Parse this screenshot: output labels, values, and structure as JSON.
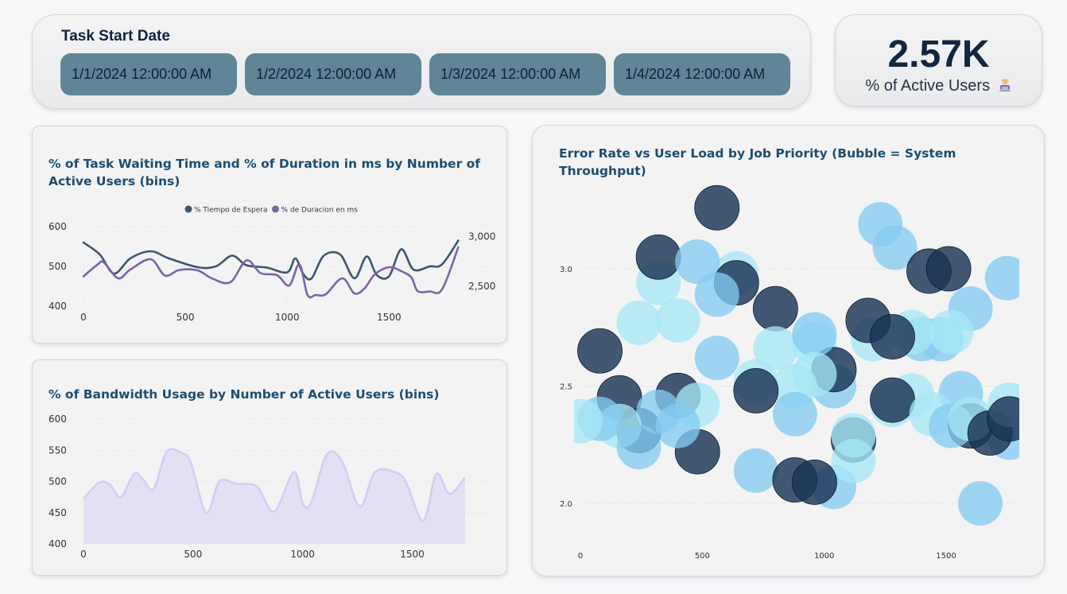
{
  "slicer": {
    "title": "Task Start Date",
    "options": [
      "1/1/2024 12:00:00 AM",
      "1/2/2024 12:00:00 AM",
      "1/3/2024 12:00:00 AM",
      "1/4/2024 12:00:00 AM"
    ]
  },
  "kpi": {
    "value": "2.57K",
    "label": "% of Active Users",
    "icon": "technologist-emoji-icon"
  },
  "colors": {
    "waiting": "#3e566e",
    "duration": "#7b64a6",
    "bandwidth_line": "#d5ccf6",
    "bandwidth_fill": "#e3ddf3",
    "bubble_dark": "#1b3556",
    "bubble_blue": "#84cbf1",
    "bubble_cyan": "#a6e7f6"
  },
  "chart_data": [
    {
      "type": "line",
      "title": "% of Task Waiting Time and % of Duration in ms by Number of Active Users (bins)",
      "xlim": [
        0,
        1850
      ],
      "x_ticks": [
        0,
        500,
        1000,
        1500
      ],
      "y_left": {
        "ticks": [
          400,
          500,
          600
        ],
        "lim": [
          400,
          600
        ]
      },
      "y_right": {
        "ticks": [
          2500,
          3000
        ],
        "tick_labels": [
          "2,500",
          "3,000"
        ],
        "lim": [
          2300,
          3100
        ]
      },
      "legend": {
        "placement": "top-center"
      },
      "series": [
        {
          "name": "% Tiempo de Espera",
          "axis": "left",
          "color": "#3e566e",
          "points": [
            [
              0,
              560
            ],
            [
              80,
              530
            ],
            [
              150,
              482
            ],
            [
              230,
              520
            ],
            [
              330,
              538
            ],
            [
              420,
              520
            ],
            [
              560,
              498
            ],
            [
              650,
              500
            ],
            [
              730,
              527
            ],
            [
              800,
              503
            ],
            [
              900,
              497
            ],
            [
              1000,
              485
            ],
            [
              1040,
              520
            ],
            [
              1080,
              480
            ],
            [
              1120,
              470
            ],
            [
              1180,
              527
            ],
            [
              1260,
              530
            ],
            [
              1330,
              470
            ],
            [
              1390,
              525
            ],
            [
              1440,
              478
            ],
            [
              1500,
              475
            ],
            [
              1560,
              543
            ],
            [
              1620,
              492
            ],
            [
              1700,
              500
            ],
            [
              1760,
              505
            ],
            [
              1840,
              565
            ]
          ]
        },
        {
          "name": "% de Duracion en ms",
          "axis": "left",
          "color": "#7b64a6",
          "points": [
            [
              0,
              475
            ],
            [
              70,
              505
            ],
            [
              100,
              510
            ],
            [
              170,
              470
            ],
            [
              230,
              492
            ],
            [
              330,
              518
            ],
            [
              400,
              477
            ],
            [
              470,
              491
            ],
            [
              560,
              490
            ],
            [
              630,
              470
            ],
            [
              720,
              460
            ],
            [
              800,
              515
            ],
            [
              870,
              483
            ],
            [
              950,
              478
            ],
            [
              1010,
              452
            ],
            [
              1060,
              505
            ],
            [
              1100,
              428
            ],
            [
              1140,
              428
            ],
            [
              1190,
              430
            ],
            [
              1270,
              470
            ],
            [
              1330,
              432
            ],
            [
              1380,
              445
            ],
            [
              1430,
              480
            ],
            [
              1500,
              498
            ],
            [
              1560,
              488
            ],
            [
              1610,
              472
            ],
            [
              1640,
              438
            ],
            [
              1700,
              437
            ],
            [
              1760,
              442
            ],
            [
              1840,
              548
            ]
          ]
        }
      ]
    },
    {
      "type": "area",
      "title": "% of Bandwidth Usage by Number of Active Users (bins)",
      "xlim": [
        0,
        1850
      ],
      "x_ticks": [
        0,
        500,
        1000,
        1500
      ],
      "ylim": [
        400,
        600
      ],
      "y_ticks": [
        400,
        450,
        500,
        550,
        600
      ],
      "grid": true,
      "series": [
        {
          "color": "#d5ccf6",
          "points": [
            [
              0,
              472
            ],
            [
              70,
              498
            ],
            [
              120,
              495
            ],
            [
              170,
              475
            ],
            [
              230,
              512
            ],
            [
              270,
              504
            ],
            [
              320,
              488
            ],
            [
              380,
              548
            ],
            [
              450,
              545
            ],
            [
              490,
              530
            ],
            [
              560,
              450
            ],
            [
              620,
              500
            ],
            [
              700,
              496
            ],
            [
              790,
              492
            ],
            [
              870,
              452
            ],
            [
              960,
              515
            ],
            [
              1000,
              465
            ],
            [
              1040,
              467
            ],
            [
              1110,
              543
            ],
            [
              1180,
              532
            ],
            [
              1260,
              460
            ],
            [
              1330,
              515
            ],
            [
              1420,
              515
            ],
            [
              1470,
              500
            ],
            [
              1550,
              437
            ],
            [
              1610,
              512
            ],
            [
              1670,
              480
            ],
            [
              1740,
              506
            ]
          ]
        }
      ]
    },
    {
      "type": "scatter",
      "title": "Error Rate vs User Load by Job Priority (Bubble = System Throughput)",
      "xlim": [
        0,
        1800
      ],
      "ylim": [
        1.8,
        3.4
      ],
      "x_ticks": [
        0,
        500,
        1000,
        1500
      ],
      "y_ticks": [
        2.0,
        2.5,
        3.0
      ],
      "y_tick_labels": [
        "2.0",
        "2.5",
        "3.0"
      ],
      "grid": true,
      "series": [
        {
          "color": "#1b3556",
          "points": [
            [
              560,
              3.26
            ],
            [
              320,
              3.05
            ],
            [
              640,
              2.94
            ],
            [
              800,
              2.83
            ],
            [
              80,
              2.65
            ],
            [
              160,
              2.45
            ],
            [
              400,
              2.46
            ],
            [
              240,
              2.31
            ],
            [
              480,
              2.22
            ],
            [
              1040,
              2.57
            ],
            [
              1180,
              2.78
            ],
            [
              1280,
              2.71
            ],
            [
              1430,
              2.99
            ],
            [
              1510,
              3.0
            ],
            [
              1280,
              2.44
            ],
            [
              1120,
              2.27
            ],
            [
              880,
              2.1
            ],
            [
              960,
              2.09
            ],
            [
              1600,
              2.33
            ],
            [
              1680,
              2.3
            ],
            [
              1760,
              2.36
            ],
            [
              720,
              2.48
            ]
          ]
        },
        {
          "color": "#84cbf1",
          "points": [
            [
              1230,
              3.19
            ],
            [
              1290,
              3.09
            ],
            [
              480,
              3.03
            ],
            [
              560,
              2.89
            ],
            [
              1750,
              2.96
            ],
            [
              1600,
              2.83
            ],
            [
              1400,
              2.7
            ],
            [
              1480,
              2.7
            ],
            [
              560,
              2.62
            ],
            [
              1040,
              2.5
            ],
            [
              1560,
              2.47
            ],
            [
              1040,
              2.07
            ],
            [
              720,
              2.14
            ],
            [
              880,
              2.38
            ],
            [
              320,
              2.39
            ],
            [
              80,
              2.36
            ],
            [
              240,
              2.24
            ],
            [
              1640,
              2.0
            ],
            [
              1760,
              2.28
            ],
            [
              1520,
              2.33
            ],
            [
              960,
              2.72
            ],
            [
              400,
              2.33
            ]
          ]
        },
        {
          "color": "#a6e7f6",
          "points": [
            [
              320,
              2.94
            ],
            [
              640,
              2.98
            ],
            [
              240,
              2.77
            ],
            [
              400,
              2.78
            ],
            [
              800,
              2.66
            ],
            [
              960,
              2.68
            ],
            [
              1200,
              2.7
            ],
            [
              1360,
              2.73
            ],
            [
              1520,
              2.73
            ],
            [
              1280,
              2.42
            ],
            [
              1360,
              2.46
            ],
            [
              720,
              2.52
            ],
            [
              880,
              2.5
            ],
            [
              480,
              2.42
            ],
            [
              160,
              2.33
            ],
            [
              0,
              2.35
            ],
            [
              1120,
              2.18
            ],
            [
              1120,
              2.29
            ],
            [
              1440,
              2.38
            ],
            [
              1600,
              2.36
            ],
            [
              1760,
              2.42
            ],
            [
              960,
              2.55
            ]
          ]
        }
      ]
    }
  ]
}
